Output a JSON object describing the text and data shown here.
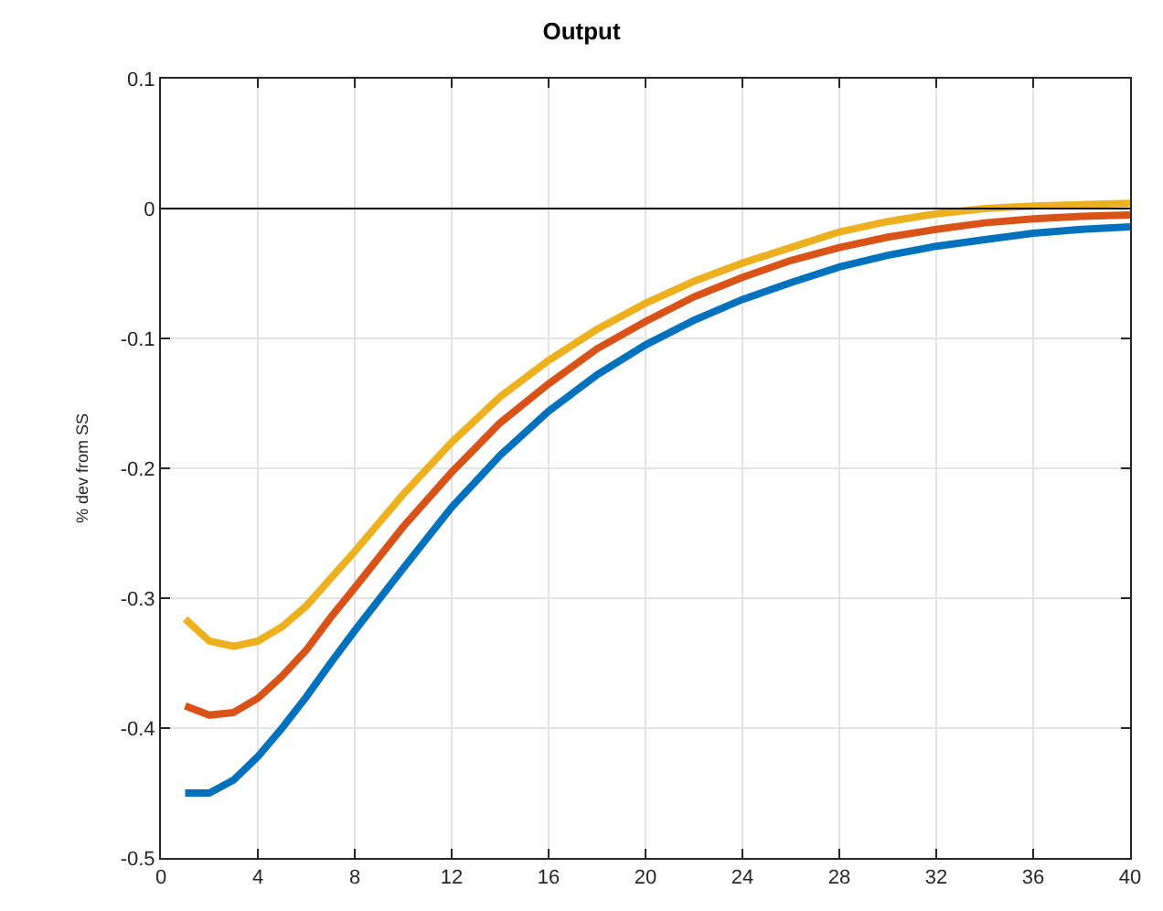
{
  "chart_data": {
    "type": "line",
    "title": "Output",
    "ylabel": "% dev from SS",
    "x": [
      1,
      2,
      3,
      4,
      5,
      6,
      7,
      8,
      10,
      12,
      14,
      16,
      18,
      20,
      22,
      24,
      26,
      28,
      30,
      32,
      34,
      36,
      38,
      40
    ],
    "series": [
      {
        "color": "#0072bd",
        "values": [
          -0.45,
          -0.45,
          -0.44,
          -0.422,
          -0.4,
          -0.376,
          -0.35,
          -0.325,
          -0.277,
          -0.23,
          -0.19,
          -0.156,
          -0.128,
          -0.105,
          -0.086,
          -0.07,
          -0.057,
          -0.045,
          -0.036,
          -0.029,
          -0.024,
          -0.019,
          -0.016,
          -0.014
        ]
      },
      {
        "color": "#d95319",
        "values": [
          -0.383,
          -0.39,
          -0.388,
          -0.377,
          -0.36,
          -0.34,
          -0.315,
          -0.292,
          -0.245,
          -0.203,
          -0.165,
          -0.135,
          -0.108,
          -0.087,
          -0.068,
          -0.053,
          -0.04,
          -0.03,
          -0.022,
          -0.016,
          -0.011,
          -0.008,
          -0.006,
          -0.005
        ]
      },
      {
        "color": "#edb120",
        "values": [
          -0.316,
          -0.333,
          -0.337,
          -0.333,
          -0.322,
          -0.306,
          -0.285,
          -0.264,
          -0.22,
          -0.18,
          -0.145,
          -0.117,
          -0.093,
          -0.073,
          -0.056,
          -0.042,
          -0.03,
          -0.018,
          -0.01,
          -0.004,
          0.0,
          0.002,
          0.003,
          0.004
        ]
      }
    ],
    "xlim": [
      0,
      40
    ],
    "xticks": [
      0,
      4,
      8,
      12,
      16,
      20,
      24,
      28,
      32,
      36,
      40
    ],
    "ylim": [
      -0.5,
      0.1
    ],
    "yticks": [
      -0.5,
      -0.4,
      -0.3,
      -0.2,
      -0.1,
      0,
      0.1
    ],
    "ref_lines": [
      {
        "axis": "y",
        "value": 0,
        "color": "#000000"
      }
    ],
    "grid": true,
    "marker": "none",
    "line_style": "solid"
  }
}
